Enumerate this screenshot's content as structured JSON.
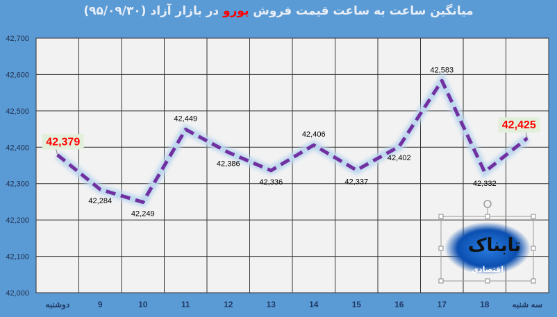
{
  "chart_data": {
    "type": "line",
    "title_parts": {
      "before": "میانگین ساعت به ساعت قیمت فروش ",
      "highlight": "یورو",
      "after": " در بازار آزاد (۹۵/۰۹/۳۰)"
    },
    "categories": [
      "دوشنبه",
      "9",
      "10",
      "11",
      "12",
      "13",
      "14",
      "15",
      "16",
      "17",
      "18",
      "سه شنبه"
    ],
    "values": [
      42379,
      42284,
      42249,
      42449,
      42386,
      42336,
      42406,
      42337,
      42402,
      42583,
      42332,
      42425
    ],
    "data_labels": [
      "42,379",
      "42,284",
      "42,249",
      "42,449",
      "42,386",
      "42,336",
      "42,406",
      "42,337",
      "42,402",
      "42,583",
      "42,332",
      "42,425"
    ],
    "ylim": [
      42000,
      42700
    ],
    "yticks": [
      "42,000",
      "42,100",
      "42,200",
      "42,300",
      "42,400",
      "42,500",
      "42,600",
      "42,700"
    ],
    "grid": true,
    "line_color": "#7030a0",
    "glow_color": "#bdd7ee",
    "highlight_color": "#ff0000"
  },
  "logo": {
    "text": "تابناک",
    "subtext": "اقتصادی"
  }
}
